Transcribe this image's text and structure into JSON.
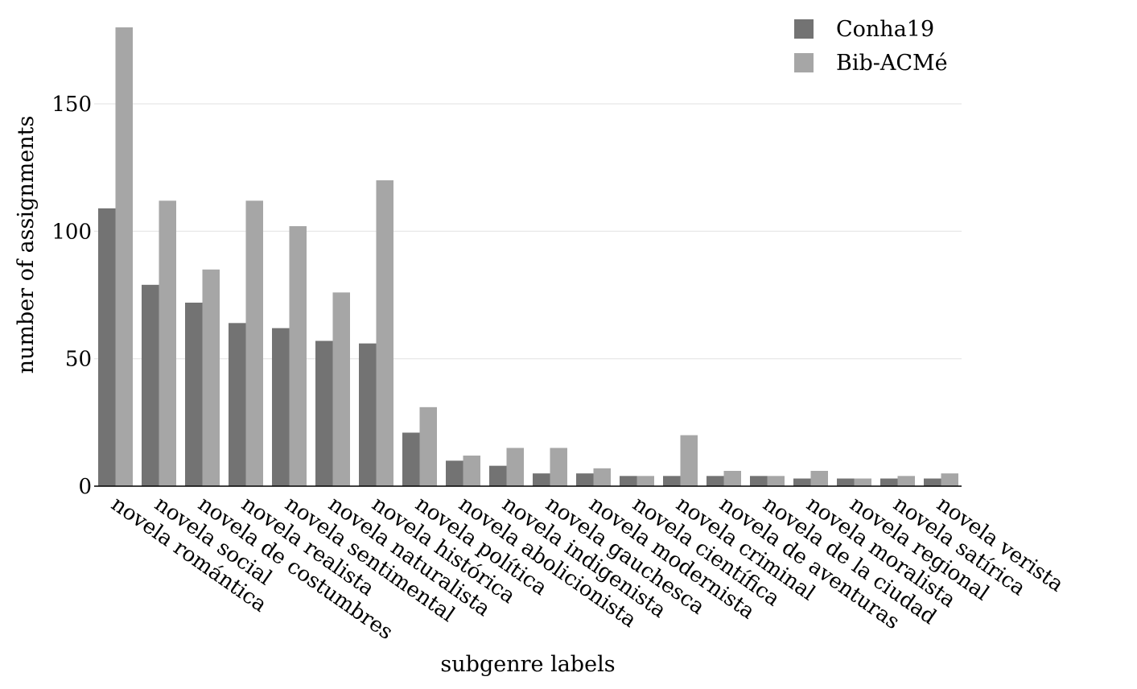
{
  "chart_data": {
    "type": "bar",
    "title": "",
    "xlabel": "subgenre labels",
    "ylabel": "number of assignments",
    "ylim": [
      0,
      180
    ],
    "yticks": [
      0,
      50,
      100,
      150
    ],
    "grid": true,
    "legend_position": "top-right",
    "categories": [
      "novela romántica",
      "novela social",
      "novela de costumbres",
      "novela realista",
      "novela sentimental",
      "novela naturalista",
      "novela histórica",
      "novela política",
      "novela abolicionista",
      "novela indigenista",
      "novela gauchesca",
      "novela modernista",
      "novela científica",
      "novela criminal",
      "novela de aventuras",
      "novela de la ciudad",
      "novela moralista",
      "novela regional",
      "novela satírica",
      "novela verista"
    ],
    "series": [
      {
        "name": "Conha19",
        "color": "#737373",
        "values": [
          109,
          79,
          72,
          64,
          62,
          57,
          56,
          21,
          10,
          8,
          5,
          5,
          4,
          4,
          4,
          4,
          3,
          3,
          3,
          3
        ]
      },
      {
        "name": "Bib-ACMé",
        "color": "#a6a6a6",
        "values": [
          180,
          112,
          85,
          112,
          102,
          76,
          120,
          31,
          12,
          15,
          15,
          7,
          4,
          20,
          6,
          4,
          6,
          3,
          4,
          5
        ]
      }
    ]
  }
}
